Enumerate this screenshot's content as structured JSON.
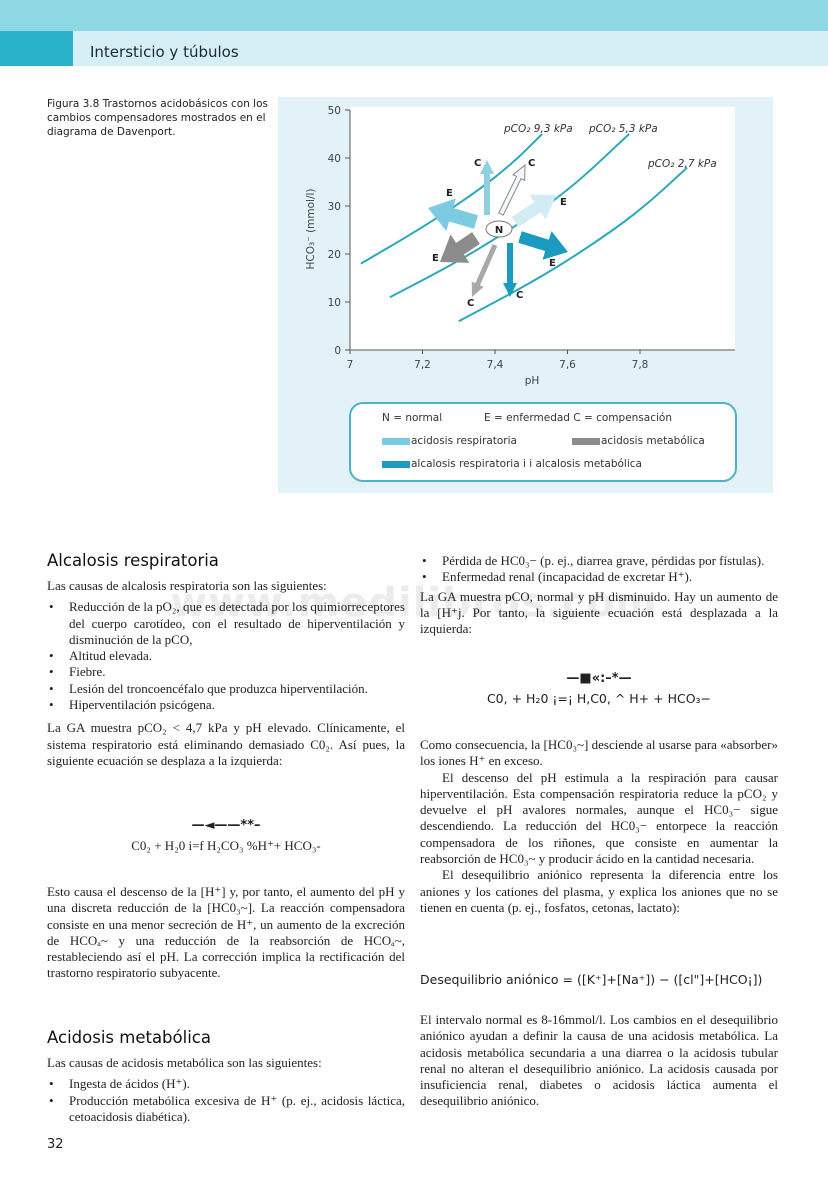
{
  "header": {
    "running_title": "Intersticio y túbulos",
    "colors": {
      "band_light": "#8dd8e3",
      "band_dark": "#2bb2cb",
      "band_pale": "#d5eff5"
    }
  },
  "figure": {
    "caption": "Figura 3.8 Trastornos acidobásicos con los cambios compensadores mostrados en el diagrama de Davenport.",
    "chart_data": {
      "type": "line",
      "xlabel": "pH",
      "ylabel": "HCO₃⁻ (mmol/l)",
      "xlim": [
        7,
        8.0
      ],
      "ylim": [
        0,
        50
      ],
      "x_ticks": [
        "7",
        "7,2",
        "7,4",
        "7,6",
        "7,8"
      ],
      "x_tick_values": [
        7,
        7.2,
        7.4,
        7.6,
        7.8
      ],
      "y_ticks": [
        "0",
        "10",
        "20",
        "30",
        "40",
        "50"
      ],
      "y_tick_values": [
        0,
        10,
        20,
        30,
        40,
        50
      ],
      "grid": false,
      "series": [
        {
          "name": "pCO₂ 9,3 kPa",
          "x": [
            7.03,
            7.2,
            7.35,
            7.45,
            7.53
          ],
          "y": [
            18,
            25.5,
            33,
            39,
            45
          ]
        },
        {
          "name": "pCO₂ 5,3 kPa",
          "x": [
            7.11,
            7.3,
            7.45,
            7.6,
            7.77
          ],
          "y": [
            11,
            18.5,
            25.5,
            33,
            45
          ]
        },
        {
          "name": "pCO₂ 2,7 kPa",
          "x": [
            7.3,
            7.5,
            7.65,
            7.8,
            7.93
          ],
          "y": [
            6,
            14,
            21,
            29,
            38
          ]
        }
      ],
      "series_color": "#2aa9bd",
      "annotations": {
        "normal_point": {
          "label": "N",
          "x": 7.4,
          "y": 25
        },
        "arrows": [
          {
            "label": "E",
            "disorder": "acidosis respiratoria",
            "kind": "enfermedad",
            "color": "#7ccbe0"
          },
          {
            "label": "C",
            "disorder": "acidosis respiratoria",
            "kind": "compensación",
            "color": "#8fd0e0"
          },
          {
            "label": "C",
            "disorder": "alcalosis metabólica",
            "kind": "compensación",
            "color": "#f2f8fb"
          },
          {
            "label": "E",
            "disorder": "alcalosis metabólica",
            "kind": "enfermedad",
            "color": "#d3ecf4"
          },
          {
            "label": "E",
            "disorder": "acidosis metabólica",
            "kind": "enfermedad",
            "color": "#8c8c8c"
          },
          {
            "label": "E",
            "disorder": "alcalosis respiratoria",
            "kind": "enfermedad",
            "color": "#1a9bbf"
          },
          {
            "label": "C",
            "disorder": "acidosis metabólica",
            "kind": "compensación",
            "color": "#a8a8a8"
          },
          {
            "label": "C",
            "disorder": "alcalosis respiratoria",
            "kind": "compensación",
            "color": "#1a9bbf"
          }
        ]
      }
    },
    "legend": {
      "normal": "N = normal",
      "codes": "E = enfermedad C = compensación",
      "acid_resp": "acidosis respiratoria",
      "acid_met": "acidosis metabólica",
      "alk": "alcalosis respiratoria i i alcalosis metabólica",
      "colors": {
        "acid_resp": "#7ccbe0",
        "acid_met": "#8c8c8c",
        "alk_resp": "#1a9bbf",
        "alk_met": "#d3ecf4"
      }
    }
  },
  "watermark": "www.medilibros.com",
  "left": {
    "h1": "Alcalosis respiratoria",
    "intro1": "Las causas de alcalosis respiratoria son las siguientes:",
    "list1": [
      "Reducción de la pO₂, que es detectada por los quimiorreceptores del cuerpo carotídeo, con el resultado de hiperventilación y disminución de la pCO,",
      "Altitud elevada.",
      "Fiebre.",
      "Lesión del troncoencéfalo que produzca hiperventilación.",
      "Hiperventilación psicógena."
    ],
    "para1": "La GA muestra pCO₂ < 4,7 kPa y pH elevado. Clínicamente, el sistema respiratorio está eliminando demasiado C0₂. Así pues, la siguiente ecuación se desplaza a la izquierda:",
    "eq1_arrow": "—◄——**–",
    "eq1": "C0₂ + H₂0 i=f H₂CO₃ %H⁺+ HCO₃-",
    "para2": "Esto causa el descenso de la [H⁺] y, por tanto, el aumento del pH y una discreta reducción de la [HC0₃~]. La reacción compensadora consiste en una menor secreción de H⁺, un aumento de la excreción de HCOₐ~ y una reducción de la reabsorción de HCOₐ~, restableciendo así el pH. La corrección implica la rectificación del trastorno respiratorio subyacente.",
    "h2": "Acidosis metabólica",
    "intro2": "Las causas de acidosis metabólica son las siguientes:",
    "list2": [
      "Ingesta de ácidos (H⁺).",
      "Producción metabólica excesiva de H⁺ (p. ej., acidosis láctica, cetoacidosis diabética)."
    ],
    "page_number": "32"
  },
  "right": {
    "list": [
      "Pérdida de HC0₃− (p. ej., diarrea grave, pérdidas por fístulas).",
      "Enfermedad renal (incapacidad de excretar H⁺)."
    ],
    "para1": "La GA muestra pCO, normal y pH disminuido. Hay un aumento de la [H⁺j. Por tanto, la siguiente ecuación está desplazada a la izquierda:",
    "eq_arrow": "—■«:–*—",
    "eq": "C0, + H₂0 ¡=¡ H,C0, ^ H+ + HCO₃−",
    "para2": "Como consecuencia, la [HC0₃~] desciende al usarse para «absorber» los iones H⁺ en exceso.",
    "para3": "El descenso del pH estimula a la respiración para causar hiperventilación. Esta compensación respiratoria reduce la pCO₂ y devuelve el pH avalores normales, aunque el HC0₃− sigue descendiendo. La reducción del HC0₃− entorpece la reacción compensadora de los riñones, que consiste en aumentar la reabsorción de HC0₃~ y producir ácido en la cantidad necesaria.",
    "para4": "El desequilibrio aniónico representa la diferencia entre los aniones y los cationes del plasma, y explica los aniones que no se tienen en cuenta (p. ej., fosfatos, cetonas, lactato):",
    "formula": "Desequilibrio aniónico = ([K⁺]+[Na⁺]) − ([cl\"]+[HCO¡])",
    "para5": "El intervalo normal es 8-16mmol/l. Los cambios en el desequilibrio aniónico ayudan a definir la causa de una acidosis metabólica. La acidosis metabólica secundaria a una diarrea o la acidosis tubular renal no alteran el desequilibrio aniónico. La acidosis causada por insuficiencia renal, diabetes o acidosis láctica aumenta el desequilibrio aniónico."
  }
}
